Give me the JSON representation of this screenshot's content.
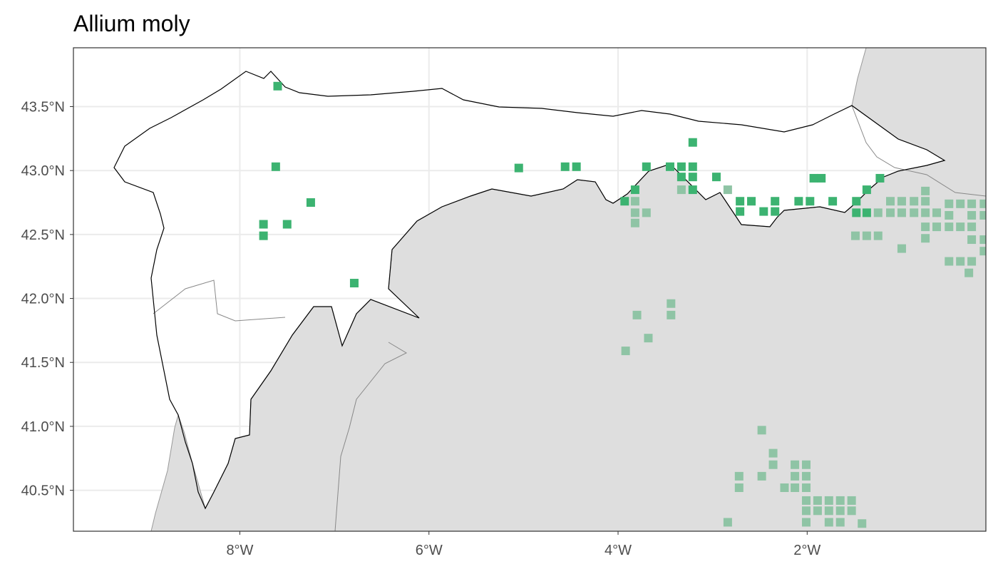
{
  "chart_data": {
    "type": "map",
    "title": "Allium moly",
    "xlim": [
      -9.76,
      -0.11
    ],
    "ylim": [
      40.18,
      43.96
    ],
    "xticks": [
      {
        "value": -8,
        "label": "8°W"
      },
      {
        "value": -6,
        "label": "6°W"
      },
      {
        "value": -4,
        "label": "4°W"
      },
      {
        "value": -2,
        "label": "2°W"
      }
    ],
    "yticks": [
      {
        "value": 40.5,
        "label": "40.5°N"
      },
      {
        "value": 41.0,
        "label": "41.0°N"
      },
      {
        "value": 41.5,
        "label": "41.5°N"
      },
      {
        "value": 42.0,
        "label": "42.0°N"
      },
      {
        "value": 42.5,
        "label": "42.5°N"
      },
      {
        "value": 43.0,
        "label": "43.0°N"
      },
      {
        "value": 43.5,
        "label": "43.5°N"
      }
    ],
    "grid": true,
    "series": [
      {
        "color": "#8fc4a5",
        "x": [
          -3.82,
          -3.82,
          -3.7,
          -3.82,
          -2.84,
          -0.75,
          -1.12,
          -1.0,
          -0.87,
          -0.75,
          -0.5,
          -0.38,
          -0.26,
          -0.13,
          -1.25,
          -1.12,
          -1.0,
          -0.87,
          -0.75,
          -0.63,
          -0.5,
          -0.26,
          -0.13,
          -0.75,
          -0.63,
          -0.5,
          -0.38,
          -0.26,
          -1.49,
          -1.37,
          -1.25,
          -0.75,
          -0.26,
          -0.13,
          -1.0,
          -0.13,
          -0.5,
          -0.38,
          -0.26,
          -0.29,
          -3.44,
          -3.44,
          -3.8,
          -3.68,
          -3.92,
          -2.48,
          -2.36,
          -2.36,
          -2.72,
          -2.48,
          -2.13,
          -2.01,
          -2.13,
          -2.01,
          -2.72,
          -2.24,
          -2.13,
          -2.01,
          -2.01,
          -1.89,
          -1.77,
          -1.65,
          -1.53,
          -2.01,
          -1.89,
          -1.77,
          -1.65,
          -1.53,
          -2.84,
          -2.01,
          -1.77,
          -1.65,
          -1.42,
          -3.33
        ],
        "y": [
          42.76,
          42.67,
          42.67,
          42.59,
          42.85,
          42.84,
          42.76,
          42.76,
          42.76,
          42.76,
          42.74,
          42.74,
          42.74,
          42.74,
          42.67,
          42.67,
          42.67,
          42.67,
          42.67,
          42.67,
          42.65,
          42.65,
          42.65,
          42.56,
          42.56,
          42.56,
          42.56,
          42.56,
          42.49,
          42.49,
          42.49,
          42.47,
          42.46,
          42.46,
          42.39,
          42.37,
          42.29,
          42.29,
          42.29,
          42.2,
          41.96,
          41.87,
          41.87,
          41.69,
          41.59,
          40.97,
          40.79,
          40.7,
          40.61,
          40.61,
          40.7,
          40.7,
          40.61,
          40.61,
          40.52,
          40.52,
          40.52,
          40.52,
          40.42,
          40.42,
          40.42,
          40.42,
          40.42,
          40.34,
          40.34,
          40.34,
          40.34,
          40.34,
          40.25,
          40.25,
          40.25,
          40.25,
          40.24,
          42.85
        ]
      },
      {
        "color": "#3cb371",
        "x": [
          -7.6,
          -7.62,
          -7.25,
          -7.75,
          -7.5,
          -7.75,
          -6.79,
          -5.05,
          -4.56,
          -4.44,
          -3.7,
          -3.45,
          -3.33,
          -3.21,
          -3.21,
          -3.33,
          -3.21,
          -2.96,
          -1.93,
          -1.85,
          -1.23,
          -3.93,
          -3.82,
          -2.71,
          -2.59,
          -2.34,
          -2.09,
          -1.97,
          -1.73,
          -1.48,
          -2.71,
          -2.46,
          -2.34,
          -1.48,
          -1.37,
          -1.37,
          -3.21
        ],
        "y": [
          43.66,
          43.03,
          42.75,
          42.58,
          42.58,
          42.49,
          42.12,
          43.02,
          43.03,
          43.03,
          43.03,
          43.03,
          43.03,
          43.03,
          43.22,
          42.95,
          42.95,
          42.95,
          42.94,
          42.94,
          42.94,
          42.76,
          42.85,
          42.76,
          42.76,
          42.76,
          42.76,
          42.76,
          42.76,
          42.76,
          42.68,
          42.68,
          42.68,
          42.67,
          42.67,
          42.85,
          42.85
        ]
      }
    ]
  }
}
